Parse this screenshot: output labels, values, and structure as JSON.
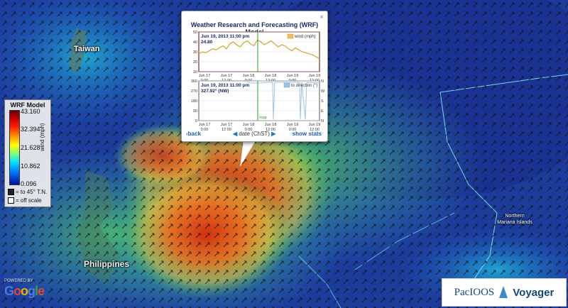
{
  "map": {
    "places": {
      "taiwan": "Taiwan",
      "philippines": "Philippines",
      "nmi": "Northern Mariana Islands"
    }
  },
  "legend": {
    "title": "WRF Model",
    "ticks": [
      "43.160",
      "32.394",
      "21.628",
      "10.862",
      "0.096"
    ],
    "units": "wind (mph)",
    "arrow_note": "= to 45° T.N.",
    "offscale_note": "= off scale"
  },
  "popup": {
    "title": "Weather Research and Forecasting (WRF) Model",
    "close": "×",
    "wind": {
      "readout_time": "Jun 19, 2013 11:00 pm",
      "readout_value": "24.80",
      "legend": "wind (mph)",
      "yticks": [
        "50",
        "40",
        "30",
        "20",
        "10"
      ],
      "values": [
        28,
        30,
        29,
        31,
        33,
        32,
        34,
        36,
        33,
        38,
        40,
        37,
        35,
        39,
        41,
        38,
        36,
        42,
        40,
        37,
        39,
        41,
        38,
        35,
        37,
        36,
        33,
        31,
        34,
        32,
        30,
        29,
        28,
        27,
        25,
        23
      ]
    },
    "direction": {
      "readout_time": "Jun 19, 2013 11:00 pm",
      "readout_value": "327.92° (NW)",
      "legend": "to direction (°)",
      "yticks": [
        "360",
        "270",
        "180",
        "90",
        "0"
      ],
      "compass": [
        "N",
        "W",
        "S",
        "E",
        "N"
      ],
      "map_label": "map"
    },
    "xticks": [
      {
        "d": "Jun 17",
        "t": "0:00"
      },
      {
        "d": "Jun 17",
        "t": "12:00"
      },
      {
        "d": "Jun 18",
        "t": "0:00"
      },
      {
        "d": "Jun 18",
        "t": "12:00"
      },
      {
        "d": "Jun 19",
        "t": "0:00"
      },
      {
        "d": "Jun 19",
        "t": "12:00"
      }
    ],
    "back": "back",
    "date_label": "date (ChST)",
    "stats": "show stats"
  },
  "branding": {
    "powered": "POWERED BY",
    "google": "Google",
    "pacioos": "PacIOOS",
    "voyager": "Voyager"
  },
  "colors": {
    "accent": "#1a5aaa",
    "chart_line": "#d4a42a",
    "dir_line": "#9bc3e6",
    "marker": "#2ca02c"
  }
}
